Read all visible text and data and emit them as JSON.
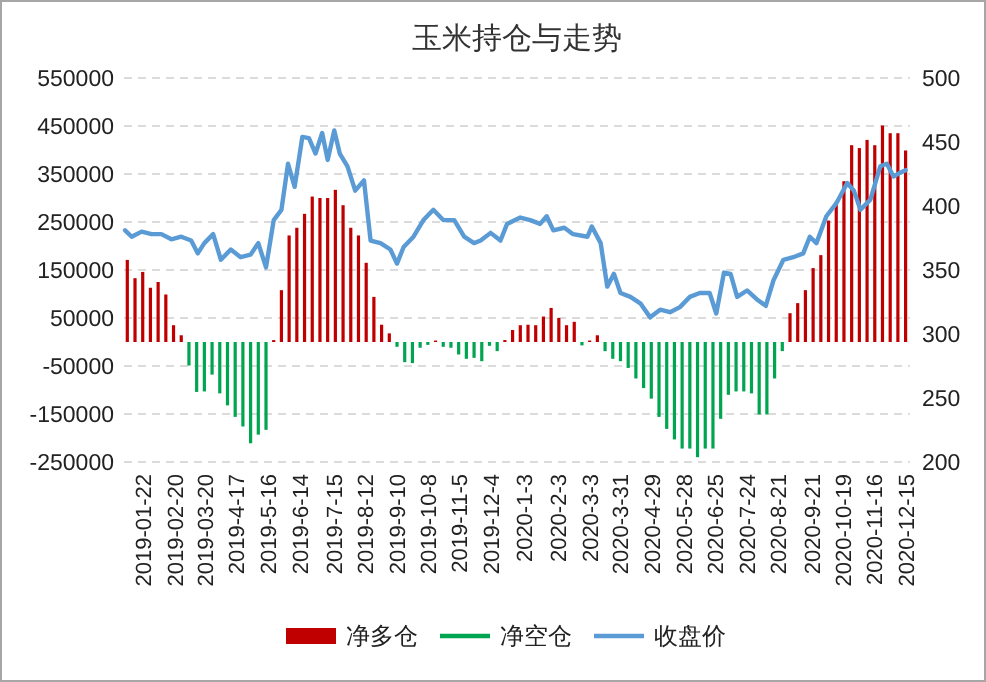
{
  "chart_data": {
    "type": "bar",
    "title": "玉米持仓与走势",
    "x": [
      "2019-01-08",
      "2019-01-15",
      "2019-01-22",
      "2019-01-29",
      "2019-02-05",
      "2019-02-12",
      "2019-02-19",
      "2019-02-26",
      "2019-03-05",
      "2019-03-12",
      "2019-03-19",
      "2019-03-26",
      "2019-04-02",
      "2019-04-09",
      "2019-04-16",
      "2019-04-23",
      "2019-04-30",
      "2019-05-07",
      "2019-05-14",
      "2019-05-21",
      "2019-05-28",
      "2019-06-04",
      "2019-06-11",
      "2019-06-18",
      "2019-06-25",
      "2019-07-02",
      "2019-07-09",
      "2019-07-16",
      "2019-07-23",
      "2019-07-30",
      "2019-08-06",
      "2019-08-13",
      "2019-08-20",
      "2019-08-27",
      "2019-09-03",
      "2019-09-10",
      "2019-09-17",
      "2019-09-24",
      "2019-10-01",
      "2019-10-08",
      "2019-10-15",
      "2019-10-22",
      "2019-10-29",
      "2019-11-05",
      "2019-11-12",
      "2019-11-19",
      "2019-11-26",
      "2019-12-03",
      "2019-12-10",
      "2019-12-17",
      "2019-12-24",
      "2019-12-31",
      "2020-01-07",
      "2020-01-14",
      "2020-01-21",
      "2020-01-28",
      "2020-02-04",
      "2020-02-11",
      "2020-02-18",
      "2020-02-25",
      "2020-03-03",
      "2020-03-10",
      "2020-03-17",
      "2020-03-24",
      "2020-03-31",
      "2020-04-07",
      "2020-04-14",
      "2020-04-21",
      "2020-04-28",
      "2020-05-05",
      "2020-05-12",
      "2020-05-19",
      "2020-05-26",
      "2020-06-02",
      "2020-06-09",
      "2020-06-16",
      "2020-06-23",
      "2020-06-30",
      "2020-07-07",
      "2020-07-14",
      "2020-07-21",
      "2020-07-28",
      "2020-08-04",
      "2020-08-11",
      "2020-08-18",
      "2020-08-25",
      "2020-09-01",
      "2020-09-08",
      "2020-09-15",
      "2020-09-22",
      "2020-09-29",
      "2020-10-06",
      "2020-10-13",
      "2020-10-20",
      "2020-10-27",
      "2020-11-03",
      "2020-11-10",
      "2020-11-17",
      "2020-11-24",
      "2020-12-01",
      "2020-12-08",
      "2020-12-15"
    ],
    "series": [
      {
        "name": "净多仓",
        "color": "#c00000",
        "values": [
          171000,
          133000,
          146000,
          113000,
          125000,
          99000,
          35000,
          14000,
          null,
          null,
          null,
          null,
          null,
          null,
          null,
          null,
          null,
          null,
          null,
          4000,
          108000,
          222000,
          238000,
          267000,
          303000,
          300000,
          300000,
          317000,
          285000,
          238000,
          222000,
          165000,
          94000,
          36000,
          18000,
          null,
          null,
          null,
          null,
          null,
          3000,
          null,
          null,
          null,
          null,
          null,
          null,
          null,
          null,
          4000,
          25000,
          35000,
          36000,
          35000,
          53000,
          71000,
          50000,
          35000,
          42000,
          null,
          3000,
          14000,
          null,
          null,
          null,
          null,
          null,
          null,
          null,
          null,
          null,
          null,
          null,
          null,
          null,
          null,
          null,
          null,
          null,
          null,
          null,
          null,
          null,
          null,
          null,
          null,
          60000,
          81000,
          108000,
          154000,
          181000,
          253000,
          292000,
          335000,
          410000,
          404000,
          421000,
          410000,
          451000,
          435000,
          435000,
          399000
        ]
      },
      {
        "name": "净空仓",
        "color": "#00a550",
        "values": [
          null,
          null,
          null,
          null,
          null,
          null,
          null,
          null,
          -49000,
          -104000,
          -103000,
          -68000,
          -107000,
          -132000,
          -156000,
          -176000,
          -211000,
          -193000,
          -183000,
          null,
          null,
          null,
          null,
          null,
          null,
          null,
          null,
          null,
          null,
          null,
          null,
          null,
          null,
          null,
          null,
          -10000,
          -42000,
          -44000,
          -12000,
          -6000,
          null,
          -10000,
          -12000,
          -26000,
          -35000,
          -33000,
          -40000,
          -8000,
          -19000,
          null,
          null,
          null,
          null,
          null,
          null,
          null,
          null,
          null,
          null,
          -7000,
          null,
          null,
          -19000,
          -35000,
          -40000,
          -54000,
          -76000,
          -96000,
          -118000,
          -156000,
          -181000,
          -203000,
          -222000,
          -222000,
          -240000,
          -222000,
          -222000,
          -160000,
          -110000,
          -103000,
          -103000,
          -107000,
          -151000,
          -151000,
          -76000,
          -19000,
          null,
          null,
          null,
          null,
          null,
          null,
          null,
          null,
          null,
          null,
          null,
          null,
          null,
          null,
          null,
          null
        ]
      },
      {
        "name": "收盘价",
        "type": "line",
        "axis": "y2",
        "color": "#5b9bd5",
        "x": [
          "2019-01-06",
          "2019-01-12",
          "2019-01-21",
          "2019-01-30",
          "2019-02-08",
          "2019-02-17",
          "2019-02-26",
          "2019-03-07",
          "2019-03-13",
          "2019-03-19",
          "2019-03-27",
          "2019-04-03",
          "2019-04-12",
          "2019-04-21",
          "2019-04-30",
          "2019-05-07",
          "2019-05-14",
          "2019-05-21",
          "2019-05-28",
          "2019-06-03",
          "2019-06-09",
          "2019-06-16",
          "2019-06-22",
          "2019-06-28",
          "2019-07-04",
          "2019-07-09",
          "2019-07-15",
          "2019-07-20",
          "2019-07-27",
          "2019-08-03",
          "2019-08-11",
          "2019-08-17",
          "2019-08-26",
          "2019-09-04",
          "2019-09-10",
          "2019-09-16",
          "2019-09-25",
          "2019-10-04",
          "2019-10-13",
          "2019-10-22",
          "2019-11-01",
          "2019-11-10",
          "2019-11-19",
          "2019-11-25",
          "2019-12-04",
          "2019-12-13",
          "2019-12-19",
          "2019-12-31",
          "2020-01-09",
          "2020-01-18",
          "2020-01-24",
          "2020-01-30",
          "2020-02-09",
          "2020-02-17",
          "2020-03-01",
          "2020-03-05",
          "2020-03-13",
          "2020-03-19",
          "2020-03-25",
          "2020-03-31",
          "2020-04-09",
          "2020-04-18",
          "2020-04-27",
          "2020-05-06",
          "2020-05-15",
          "2020-05-24",
          "2020-06-02",
          "2020-06-11",
          "2020-06-20",
          "2020-06-26",
          "2020-07-03",
          "2020-07-09",
          "2020-07-15",
          "2020-07-24",
          "2020-08-02",
          "2020-08-10",
          "2020-08-17",
          "2020-08-26",
          "2020-09-04",
          "2020-09-13",
          "2020-09-19",
          "2020-09-25",
          "2020-10-04",
          "2020-10-13",
          "2020-10-23",
          "2020-10-29",
          "2020-11-04",
          "2020-11-13",
          "2020-11-22",
          "2020-11-28",
          "2020-12-04",
          "2020-12-10",
          "2020-12-15"
        ],
        "values": [
          381,
          376,
          380,
          378,
          378,
          374,
          376,
          373,
          363,
          371,
          378,
          358,
          366,
          360,
          362,
          371,
          352,
          389,
          397,
          433,
          415,
          454,
          453,
          441,
          457,
          436,
          459,
          441,
          431,
          412,
          420,
          373,
          371,
          366,
          355,
          368,
          376,
          389,
          397,
          389,
          389,
          376,
          371,
          373,
          379,
          373,
          386,
          391,
          389,
          386,
          392,
          381,
          383,
          378,
          376,
          384,
          371,
          337,
          347,
          332,
          329,
          324,
          313,
          319,
          317,
          321,
          329,
          332,
          332,
          316,
          348,
          347,
          329,
          334,
          327,
          322,
          342,
          358,
          360,
          363,
          376,
          371,
          392,
          402,
          418,
          412,
          397,
          405,
          431,
          433,
          423,
          426,
          428
        ]
      }
    ],
    "xlim": [
      "2019-01-05",
      "2020-12-19"
    ],
    "xticks": [
      {
        "value": "2019-01-22",
        "label": "2019-01-22"
      },
      {
        "value": "2019-02-20",
        "label": "2019-02-20"
      },
      {
        "value": "2019-03-20",
        "label": "2019-03-20"
      },
      {
        "value": "2019-04-17",
        "label": "2019-4-17"
      },
      {
        "value": "2019-05-16",
        "label": "2019-5-16"
      },
      {
        "value": "2019-06-14",
        "label": "2019-6-14"
      },
      {
        "value": "2019-07-15",
        "label": "2019-7-15"
      },
      {
        "value": "2019-08-12",
        "label": "2019-8-12"
      },
      {
        "value": "2019-09-10",
        "label": "2019-9-10"
      },
      {
        "value": "2019-10-08",
        "label": "2019-10-8"
      },
      {
        "value": "2019-11-05",
        "label": "2019-11-5"
      },
      {
        "value": "2019-12-04",
        "label": "2019-12-4"
      },
      {
        "value": "2020-01-03",
        "label": "2020-1-3"
      },
      {
        "value": "2020-02-03",
        "label": "2020-2-3"
      },
      {
        "value": "2020-03-03",
        "label": "2020-3-3"
      },
      {
        "value": "2020-03-31",
        "label": "2020-3-31"
      },
      {
        "value": "2020-04-29",
        "label": "2020-4-29"
      },
      {
        "value": "2020-05-28",
        "label": "2020-5-28"
      },
      {
        "value": "2020-06-25",
        "label": "2020-6-25"
      },
      {
        "value": "2020-07-24",
        "label": "2020-7-24"
      },
      {
        "value": "2020-08-21",
        "label": "2020-8-21"
      },
      {
        "value": "2020-09-21",
        "label": "2020-9-21"
      },
      {
        "value": "2020-10-19",
        "label": "2020-10-19"
      },
      {
        "value": "2020-11-16",
        "label": "2020-11-16"
      },
      {
        "value": "2020-12-15",
        "label": "2020-12-15"
      }
    ],
    "ylim": [
      -250000,
      550000
    ],
    "yticks": [
      -250000,
      -150000,
      -50000,
      50000,
      150000,
      250000,
      350000,
      450000,
      550000
    ],
    "y2lim": [
      200,
      500
    ],
    "y2ticks": [
      200,
      250,
      300,
      350,
      400,
      450,
      500
    ],
    "grid": "y",
    "legend": "bottom"
  }
}
